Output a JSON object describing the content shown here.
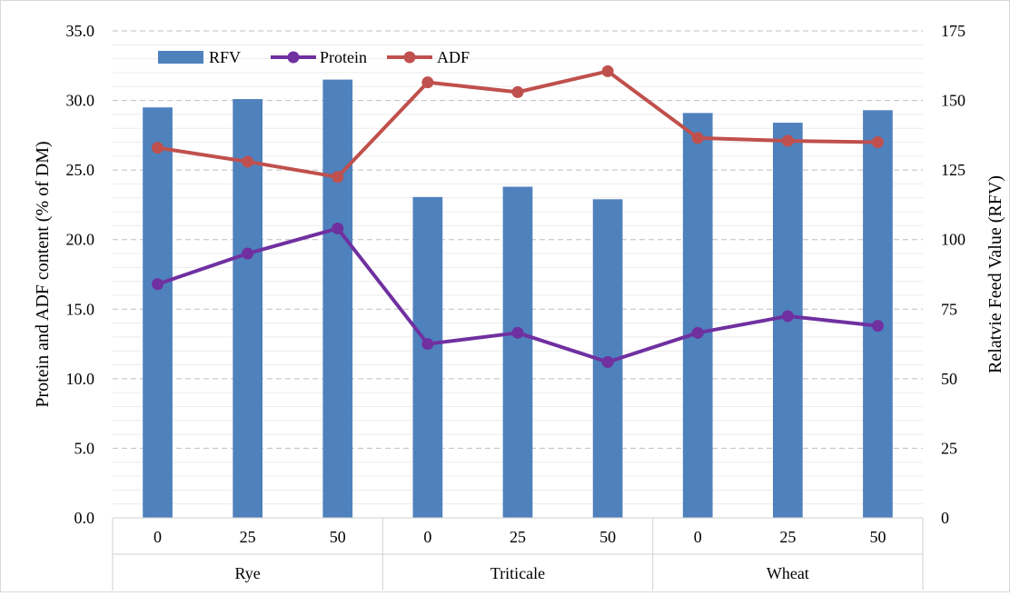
{
  "chart_data": {
    "type": "bar",
    "groups": [
      "Rye",
      "Triticale",
      "Wheat"
    ],
    "categories": [
      "0",
      "25",
      "50",
      "0",
      "25",
      "50",
      "0",
      "25",
      "50"
    ],
    "category_groups": [
      "Rye",
      "Rye",
      "Rye",
      "Triticale",
      "Triticale",
      "Triticale",
      "Wheat",
      "Wheat",
      "Wheat"
    ],
    "series": [
      {
        "name": "RFV",
        "type": "bar",
        "axis": "right",
        "color": "#4f81bd",
        "values": [
          147.5,
          150.5,
          157.5,
          115.3,
          119,
          114.5,
          145.5,
          142,
          146.5
        ]
      },
      {
        "name": "Protein",
        "type": "line",
        "axis": "left",
        "color": "#7030a0",
        "values": [
          16.8,
          19.0,
          20.8,
          12.5,
          13.3,
          11.2,
          13.3,
          14.5,
          13.8
        ]
      },
      {
        "name": "ADF",
        "type": "line",
        "axis": "left",
        "color": "#c0504d",
        "values": [
          26.6,
          25.6,
          24.5,
          31.3,
          30.6,
          32.1,
          27.3,
          27.1,
          27.0
        ]
      }
    ],
    "ylabel": "Protein and ADF content (% of DM)",
    "y2label": "Relatvie Feed Value (RFV)",
    "ylim": [
      0,
      35
    ],
    "y2lim": [
      0,
      175
    ],
    "yticks": [
      "0.0",
      "5.0",
      "10.0",
      "15.0",
      "20.0",
      "25.0",
      "30.0",
      "35.0"
    ],
    "y2ticks": [
      "0",
      "25",
      "50",
      "75",
      "100",
      "125",
      "150",
      "175"
    ],
    "grid": true,
    "legend_position": "top-left"
  }
}
